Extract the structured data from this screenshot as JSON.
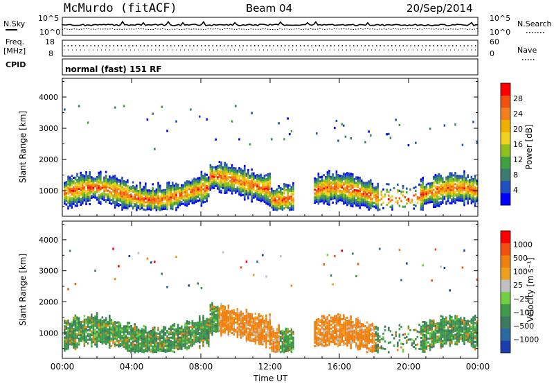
{
  "header": {
    "station": "McMurdo (fitACF)",
    "beam": "Beam 04",
    "date": "20/Sep/2014"
  },
  "noise_panel": {
    "left_label": "N.Sky",
    "right_label": "N.Search",
    "left_ticks": [
      "10^5",
      "10^0"
    ],
    "right_ticks": [
      "10^5",
      "10^0"
    ]
  },
  "freq_panel": {
    "left_label_1": "Freq.",
    "left_label_2": "[MHz]",
    "left_ticks": [
      "18",
      "8"
    ],
    "right_label": "Nave",
    "right_ticks": [
      "60",
      "0"
    ]
  },
  "cpid_panel": {
    "label": "CPID",
    "text": "normal (fast) 151 RF"
  },
  "chart_data": [
    {
      "type": "heatmap",
      "title": "",
      "ylabel": "Slant Range [km]",
      "xlabel": "",
      "ylim": [
        180,
        4600
      ],
      "yticks": [
        1000,
        2000,
        3000,
        4000
      ],
      "x_ticks": [
        "00:00",
        "04:00",
        "08:00",
        "12:00",
        "16:00",
        "20:00",
        "00:00"
      ],
      "x_hours": [
        0,
        4,
        8,
        12,
        16,
        20,
        24
      ],
      "colorbar": {
        "label": "Power [dB]",
        "tick_labels": [
          "4",
          "8",
          "12",
          "16",
          "20",
          "24",
          "28"
        ],
        "colors": [
          "#0000ff",
          "#2050c0",
          "#3d7a70",
          "#40a040",
          "#90c020",
          "#f0d020",
          "#f0b000",
          "#f08020",
          "#f05010",
          "#ff0000"
        ]
      },
      "field": "power"
    },
    {
      "type": "heatmap",
      "title": "",
      "ylabel": "Slant Range [km]",
      "xlabel": "Time UT",
      "ylim": [
        180,
        4600
      ],
      "yticks": [
        1000,
        2000,
        3000,
        4000
      ],
      "x_ticks": [
        "00:00",
        "04:00",
        "08:00",
        "12:00",
        "16:00",
        "20:00",
        "00:00"
      ],
      "x_hours": [
        0,
        4,
        8,
        12,
        16,
        20,
        24
      ],
      "colorbar": {
        "label": "Velocity [m s⁻¹]",
        "tick_labels": [
          "1000",
          "500",
          "100",
          "25",
          "−25",
          "−100",
          "−500",
          "−1000"
        ],
        "colors": [
          "#1c3cb0",
          "#2a6aa0",
          "#3d7a60",
          "#3f9a4a",
          "#70d040",
          "#c0c0c0",
          "#f0a020",
          "#f08010",
          "#f05010",
          "#ff0000"
        ]
      },
      "field": "velocity"
    }
  ]
}
